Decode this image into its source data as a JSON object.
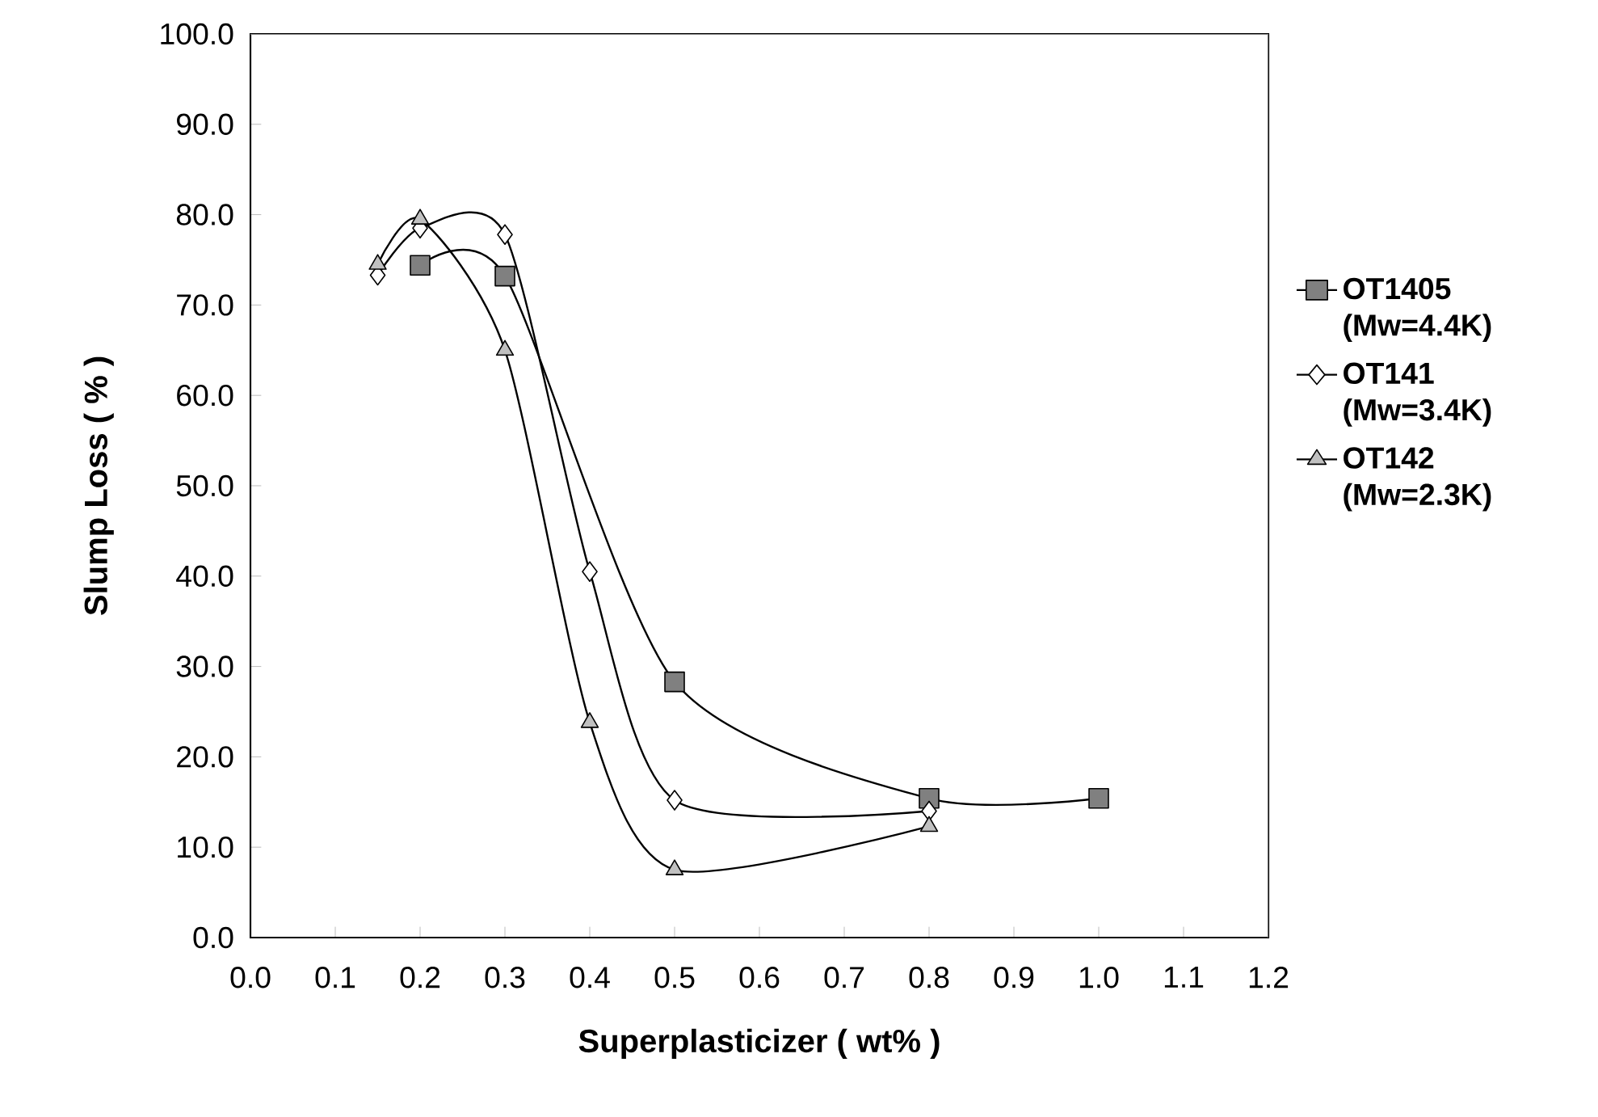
{
  "chart_data": {
    "type": "line",
    "xlabel": "Superplasticizer ( wt% )",
    "ylabel": "Slump Loss ( % )",
    "xlim": [
      0,
      1.2
    ],
    "ylim": [
      0,
      100
    ],
    "xticks": [
      {
        "value": 0,
        "label": "0.0"
      },
      {
        "value": 0.1,
        "label": "0.1"
      },
      {
        "value": 0.2,
        "label": "0.2"
      },
      {
        "value": 0.3,
        "label": "0.3"
      },
      {
        "value": 0.4,
        "label": "0.4"
      },
      {
        "value": 0.5,
        "label": "0.5"
      },
      {
        "value": 0.6,
        "label": "0.6"
      },
      {
        "value": 0.7,
        "label": "0.7"
      },
      {
        "value": 0.8,
        "label": "0.8"
      },
      {
        "value": 0.9,
        "label": "0.9"
      },
      {
        "value": 1.0,
        "label": "1.0"
      },
      {
        "value": 1.1,
        "label": "1.1"
      },
      {
        "value": 1.2,
        "label": "1.2"
      }
    ],
    "yticks": [
      {
        "value": 0,
        "label": "0.0"
      },
      {
        "value": 10,
        "label": "10.0"
      },
      {
        "value": 20,
        "label": "20.0"
      },
      {
        "value": 30,
        "label": "30.0"
      },
      {
        "value": 40,
        "label": "40.0"
      },
      {
        "value": 50,
        "label": "50.0"
      },
      {
        "value": 60,
        "label": "60.0"
      },
      {
        "value": 70,
        "label": "70.0"
      },
      {
        "value": 80,
        "label": "80.0"
      },
      {
        "value": 90,
        "label": "90.0"
      },
      {
        "value": 100,
        "label": "100.0"
      }
    ],
    "legend": "right",
    "grid": false,
    "line_style": "solid",
    "series": [
      {
        "name": "OT1405 (Mw=4.4K)",
        "color": "#808080",
        "marker": "square",
        "x": [
          0.2,
          0.3,
          0.5,
          0.8,
          1.0
        ],
        "values": [
          74.4,
          73.2,
          28.3,
          15.4,
          15.4
        ]
      },
      {
        "name": "OT141 (Mw=3.4K)",
        "color": "#ffffff",
        "marker": "diamond",
        "x": [
          0.15,
          0.2,
          0.3,
          0.4,
          0.5,
          0.8
        ],
        "values": [
          73.3,
          78.5,
          77.8,
          40.5,
          15.2,
          14.0
        ]
      },
      {
        "name": "OT142 (Mw=2.3K)",
        "color": "#c0c0c0",
        "marker": "triangle",
        "x": [
          0.15,
          0.2,
          0.3,
          0.4,
          0.5,
          0.8
        ],
        "values": [
          74.5,
          79.5,
          65.0,
          23.8,
          7.5,
          12.3
        ]
      }
    ]
  }
}
